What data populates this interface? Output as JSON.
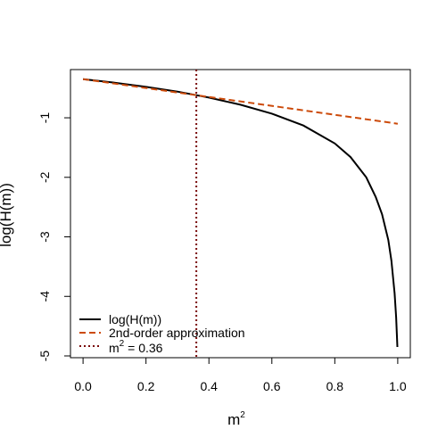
{
  "chart_data": {
    "type": "line",
    "xlabel": "m",
    "xlabel_superscript": "2",
    "ylabel": "log(H(m))",
    "xlim": [
      -0.04,
      1.04
    ],
    "ylim": [
      -5.03,
      -0.19
    ],
    "xticks": [
      0.0,
      0.2,
      0.4,
      0.6,
      0.8,
      1.0
    ],
    "xtick_labels": [
      "0.0",
      "0.2",
      "0.4",
      "0.6",
      "0.8",
      "1.0"
    ],
    "yticks": [
      -5,
      -4,
      -3,
      -2,
      -1
    ],
    "ytick_labels": [
      "-5",
      "-4",
      "-3",
      "-2",
      "-1"
    ],
    "legend_position": "bottom-left",
    "series": [
      {
        "name": "log(H(m))",
        "style": "solid",
        "color": "#000000",
        "x": [
          0.0,
          0.1,
          0.2,
          0.3,
          0.36,
          0.4,
          0.5,
          0.6,
          0.7,
          0.8,
          0.85,
          0.9,
          0.93,
          0.95,
          0.97,
          0.98,
          0.99,
          0.995,
          0.999
        ],
        "y": [
          -0.35,
          -0.41,
          -0.48,
          -0.56,
          -0.62,
          -0.66,
          -0.78,
          -0.93,
          -1.13,
          -1.43,
          -1.66,
          -2.0,
          -2.33,
          -2.62,
          -3.05,
          -3.4,
          -3.95,
          -4.35,
          -4.85
        ]
      },
      {
        "name": "2nd-order approximation",
        "style": "dashed",
        "color": "#cc4a0a",
        "x": [
          0.0,
          1.0
        ],
        "y": [
          -0.35,
          -1.1
        ]
      },
      {
        "name": "m2 = 0.36",
        "label_prefix": "m",
        "label_superscript": "2",
        "label_suffix": " = 0.36",
        "style": "dotted",
        "color": "#7a0a0a",
        "vline_x": 0.36
      }
    ]
  }
}
